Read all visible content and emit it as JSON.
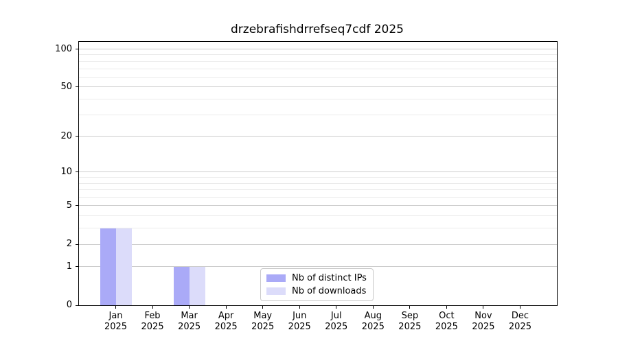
{
  "chart_data": {
    "type": "bar",
    "title": "drzebrafishdrrefseq7cdf 2025",
    "x": {
      "months": [
        "Jan",
        "Feb",
        "Mar",
        "Apr",
        "May",
        "Jun",
        "Jul",
        "Aug",
        "Sep",
        "Oct",
        "Nov",
        "Dec"
      ],
      "year": "2025"
    },
    "series": [
      {
        "name": "Nb of distinct IPs",
        "color": "#aaaaf7",
        "values": [
          3,
          0,
          1,
          0,
          0,
          0,
          0,
          0,
          0,
          0,
          0,
          0
        ]
      },
      {
        "name": "Nb of downloads",
        "color": "#dcdcfa",
        "values": [
          3,
          0,
          1,
          0,
          0,
          0,
          0,
          0,
          0,
          0,
          0,
          0
        ]
      }
    ],
    "yaxis": {
      "scale": "log1p",
      "ticks": [
        0,
        1,
        2,
        5,
        10,
        20,
        50,
        100
      ],
      "minor_gridlines": [
        3,
        4,
        6,
        7,
        8,
        9,
        30,
        40,
        60,
        70,
        80,
        90
      ],
      "ylim": [
        0,
        114
      ]
    },
    "grid": {
      "major_color": "#cccccc",
      "minor_color": "#ebebeb"
    },
    "legend": {
      "position": "inside-bottom-center"
    },
    "spine_color": "#000000"
  }
}
